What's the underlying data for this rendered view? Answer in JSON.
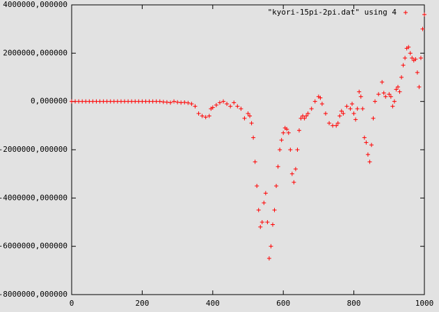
{
  "chart_data": {
    "type": "scatter",
    "x": [
      0,
      10,
      20,
      30,
      40,
      50,
      60,
      70,
      80,
      90,
      100,
      110,
      120,
      130,
      140,
      150,
      160,
      170,
      180,
      190,
      200,
      210,
      220,
      230,
      240,
      250,
      260,
      270,
      280,
      290,
      300,
      310,
      320,
      330,
      340,
      350,
      360,
      370,
      380,
      390,
      395,
      400,
      410,
      420,
      430,
      440,
      450,
      460,
      470,
      480,
      490,
      500,
      505,
      510,
      515,
      520,
      525,
      530,
      535,
      540,
      545,
      550,
      555,
      560,
      565,
      570,
      575,
      580,
      585,
      590,
      595,
      600,
      605,
      610,
      615,
      620,
      625,
      630,
      635,
      640,
      645,
      650,
      655,
      660,
      665,
      670,
      680,
      690,
      700,
      705,
      710,
      720,
      730,
      740,
      750,
      755,
      760,
      765,
      770,
      780,
      790,
      795,
      800,
      805,
      810,
      815,
      820,
      825,
      830,
      835,
      840,
      845,
      850,
      855,
      860,
      870,
      880,
      885,
      890,
      900,
      905,
      910,
      915,
      920,
      925,
      930,
      935,
      940,
      945,
      950,
      955,
      960,
      965,
      970,
      975,
      980,
      985,
      990,
      995,
      1000
    ],
    "series": [
      {
        "name": "\"kyori-15pi-2pi.dat\" using 4",
        "color": "#ff0000",
        "values": [
          0,
          0,
          0,
          0,
          0,
          0,
          0,
          0,
          0,
          0,
          0,
          0,
          0,
          0,
          0,
          0,
          0,
          0,
          0,
          0,
          0,
          0,
          0,
          0,
          0,
          0,
          -20000,
          -30000,
          -50000,
          0,
          -30000,
          -50000,
          -40000,
          -60000,
          -100000,
          -200000,
          -500000,
          -600000,
          -650000,
          -600000,
          -300000,
          -250000,
          -150000,
          -50000,
          0,
          -100000,
          -200000,
          -50000,
          -200000,
          -300000,
          -700000,
          -500000,
          -600000,
          -900000,
          -1500000,
          -2500000,
          -3500000,
          -4500000,
          -5200000,
          -5000000,
          -4200000,
          -3800000,
          -5000000,
          -6500000,
          -6000000,
          -5100000,
          -4500000,
          -3500000,
          -2700000,
          -2000000,
          -1600000,
          -1300000,
          -1100000,
          -1150000,
          -1300000,
          -2000000,
          -3000000,
          -3350000,
          -2800000,
          -2000000,
          -1200000,
          -700000,
          -600000,
          -700000,
          -600000,
          -500000,
          -300000,
          0,
          200000,
          150000,
          -100000,
          -500000,
          -900000,
          -1000000,
          -1000000,
          -900000,
          -600000,
          -400000,
          -500000,
          -200000,
          -300000,
          -100000,
          -500000,
          -750000,
          -300000,
          400000,
          200000,
          -300000,
          -1500000,
          -1700000,
          -2200000,
          -2500000,
          -1800000,
          -700000,
          0,
          300000,
          800000,
          350000,
          200000,
          300000,
          200000,
          -200000,
          0,
          500000,
          600000,
          400000,
          1000000,
          1500000,
          1800000,
          2200000,
          2250000,
          2000000,
          1800000,
          1700000,
          1750000,
          1200000,
          600000,
          1800000,
          3000000,
          3600000
        ]
      }
    ],
    "xlim": [
      0,
      1000
    ],
    "xticks": [
      0,
      200,
      400,
      600,
      800,
      1000
    ],
    "ylim": [
      -8000000,
      4000000
    ],
    "yticks": [
      {
        "value": -8000000,
        "label": "-8000000,000000"
      },
      {
        "value": -6000000,
        "label": "-6000000,000000"
      },
      {
        "value": -4000000,
        "label": "-4000000,000000"
      },
      {
        "value": -2000000,
        "label": "-2000000,000000"
      },
      {
        "value": 0,
        "label": "0,000000"
      },
      {
        "value": 2000000,
        "label": "2000000,000000"
      },
      {
        "value": 4000000,
        "label": "4000000,000000"
      }
    ],
    "legend": "top-right"
  }
}
